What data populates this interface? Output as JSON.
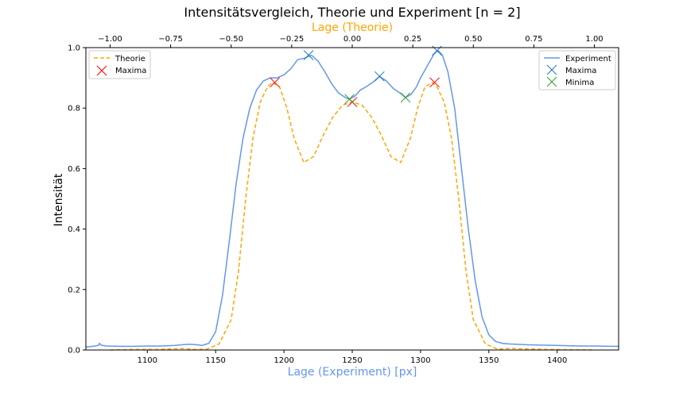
{
  "chart_data": {
    "type": "line",
    "title": "Intensitätsvergleich, Theorie und Experiment [n = 2]",
    "xlabel": "Lage (Experiment) [px]",
    "ylabel": "Intensität",
    "x2label": "Lage (Theorie)",
    "xlim": [
      1055,
      1445
    ],
    "ylim": [
      0,
      1
    ],
    "x2lim": [
      -1.1,
      1.1
    ],
    "xticks": [
      1100,
      1150,
      1200,
      1250,
      1300,
      1350,
      1400
    ],
    "yticks": [
      0.0,
      0.2,
      0.4,
      0.6,
      0.8,
      1.0
    ],
    "x2ticks": [
      -1.0,
      -0.75,
      -0.5,
      -0.25,
      0.0,
      0.25,
      0.5,
      0.75,
      1.0
    ],
    "xtick_labels": [
      "1100",
      "1150",
      "1200",
      "1250",
      "1300",
      "1350",
      "1400"
    ],
    "ytick_labels": [
      "0.0",
      "0.2",
      "0.4",
      "0.6",
      "0.8",
      "1.0"
    ],
    "x2tick_labels": [
      "−1.00",
      "−0.75",
      "−0.50",
      "−0.25",
      "0.00",
      "0.25",
      "0.50",
      "0.75",
      "1.00"
    ],
    "colors": {
      "experiment": "#6495ed",
      "theory": "#ffa500",
      "maxima_exp": "#1f77b4",
      "maxima_theory": "#ff0000",
      "minima_exp": "#2ca02c",
      "x2label": "#ffa500",
      "xlabel": "#6495ed"
    },
    "legend_left": {
      "position": "top-left",
      "entries": [
        {
          "label": "Theorie",
          "style": "dashed-line",
          "color": "#ffa500"
        },
        {
          "label": "Maxima",
          "style": "x-marker",
          "color": "#ff0000"
        }
      ]
    },
    "legend_right": {
      "position": "top-right",
      "entries": [
        {
          "label": "Experiment",
          "style": "line",
          "color": "#6495ed"
        },
        {
          "label": "Maxima",
          "style": "x-marker",
          "color": "#1f77b4"
        },
        {
          "label": "Minima",
          "style": "x-marker",
          "color": "#2ca02c"
        }
      ]
    },
    "series": [
      {
        "name": "Experiment",
        "style": "solid",
        "axis": "x",
        "x": [
          1055,
          1060,
          1064,
          1065,
          1066,
          1070,
          1080,
          1090,
          1100,
          1110,
          1120,
          1130,
          1135,
          1140,
          1145,
          1150,
          1155,
          1160,
          1165,
          1170,
          1175,
          1180,
          1185,
          1190,
          1195,
          1200,
          1205,
          1210,
          1215,
          1220,
          1225,
          1230,
          1235,
          1240,
          1245,
          1248,
          1252,
          1256,
          1260,
          1265,
          1270,
          1275,
          1280,
          1285,
          1289,
          1293,
          1297,
          1300,
          1305,
          1310,
          1313,
          1316,
          1320,
          1325,
          1330,
          1335,
          1340,
          1345,
          1350,
          1355,
          1360,
          1365,
          1370,
          1380,
          1390,
          1400,
          1410,
          1420,
          1430,
          1440,
          1445
        ],
        "y": [
          0.01,
          0.012,
          0.015,
          0.022,
          0.016,
          0.013,
          0.012,
          0.012,
          0.013,
          0.013,
          0.015,
          0.019,
          0.018,
          0.015,
          0.022,
          0.06,
          0.18,
          0.36,
          0.55,
          0.7,
          0.8,
          0.86,
          0.89,
          0.9,
          0.9,
          0.91,
          0.93,
          0.96,
          0.965,
          0.975,
          0.955,
          0.92,
          0.88,
          0.85,
          0.835,
          0.83,
          0.84,
          0.86,
          0.87,
          0.885,
          0.905,
          0.89,
          0.865,
          0.85,
          0.835,
          0.845,
          0.87,
          0.9,
          0.94,
          0.98,
          0.99,
          0.975,
          0.92,
          0.8,
          0.6,
          0.4,
          0.23,
          0.11,
          0.05,
          0.028,
          0.022,
          0.02,
          0.019,
          0.017,
          0.016,
          0.015,
          0.014,
          0.013,
          0.013,
          0.012,
          0.012
        ]
      },
      {
        "name": "Theorie",
        "style": "dashed",
        "axis": "x2",
        "x": [
          -1.0,
          -0.9,
          -0.8,
          -0.7,
          -0.65,
          -0.6,
          -0.55,
          -0.5,
          -0.47,
          -0.44,
          -0.41,
          -0.38,
          -0.35,
          -0.33,
          -0.3,
          -0.27,
          -0.24,
          -0.2,
          -0.16,
          -0.12,
          -0.08,
          -0.04,
          0.0,
          0.04,
          0.08,
          0.12,
          0.16,
          0.2,
          0.24,
          0.27,
          0.3,
          0.33,
          0.35,
          0.38,
          0.41,
          0.44,
          0.47,
          0.5,
          0.55,
          0.6,
          0.65,
          0.7,
          0.8,
          0.9,
          1.0
        ],
        "y": [
          0.0,
          0.002,
          0.002,
          0.005,
          0.002,
          0.003,
          0.02,
          0.1,
          0.26,
          0.5,
          0.7,
          0.82,
          0.87,
          0.885,
          0.87,
          0.8,
          0.7,
          0.62,
          0.64,
          0.71,
          0.77,
          0.81,
          0.82,
          0.81,
          0.77,
          0.71,
          0.64,
          0.62,
          0.7,
          0.8,
          0.87,
          0.885,
          0.87,
          0.82,
          0.7,
          0.5,
          0.26,
          0.1,
          0.02,
          0.003,
          0.005,
          0.004,
          0.002,
          0.001,
          0.0
        ]
      }
    ],
    "markers": [
      {
        "name": "Maxima",
        "series": "Theorie",
        "axis": "x2",
        "color": "#ff0000",
        "x": [
          -0.32,
          0.0,
          0.34
        ],
        "y": [
          0.885,
          0.82,
          0.885
        ]
      },
      {
        "name": "Maxima",
        "series": "Experiment",
        "axis": "x",
        "color": "#1f77b4",
        "x": [
          1218,
          1270,
          1312
        ],
        "y": [
          0.975,
          0.905,
          0.99
        ]
      },
      {
        "name": "Minima",
        "series": "Experiment",
        "axis": "x",
        "color": "#2ca02c",
        "x": [
          1248,
          1289
        ],
        "y": [
          0.83,
          0.835
        ]
      }
    ]
  }
}
